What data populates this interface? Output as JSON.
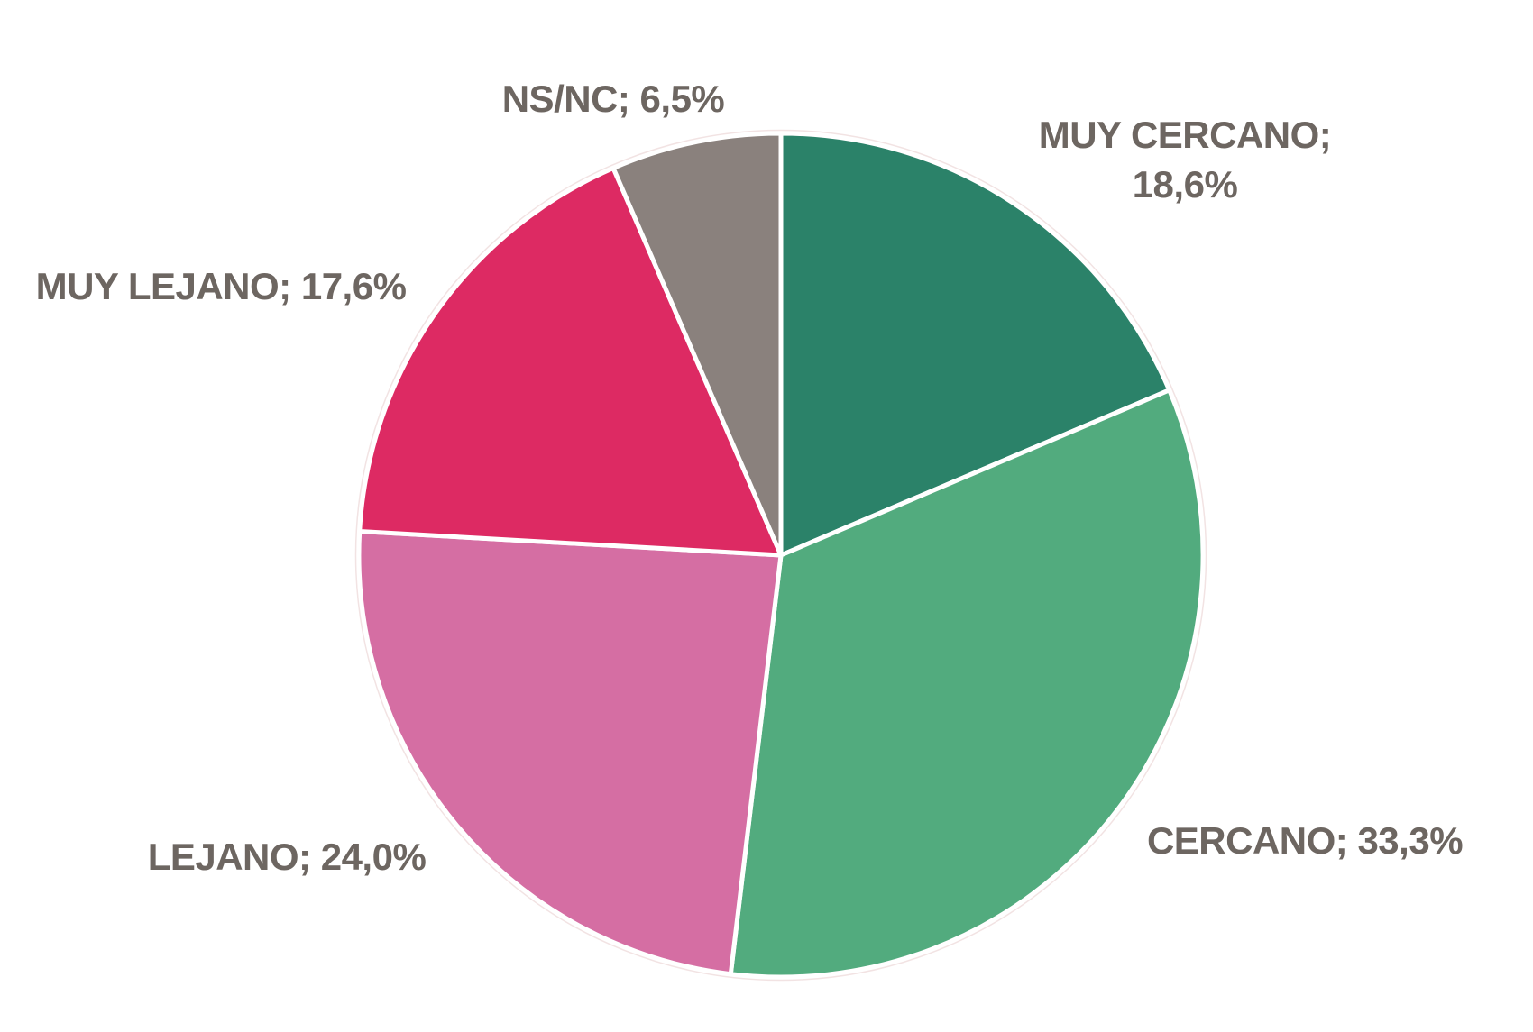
{
  "chart_data": {
    "type": "pie",
    "categories": [
      "MUY CERCANO",
      "CERCANO",
      "LEJANO",
      "MUY LEJANO",
      "NS/NC"
    ],
    "values": [
      18.6,
      33.3,
      24.0,
      17.6,
      6.5
    ],
    "value_labels": [
      "18,6%",
      "33,3%",
      "24,0%",
      "17,6%",
      "6,5%"
    ],
    "slice_labels": [
      "MUY CERCANO; 18,6%",
      "CERCANO; 33,3%",
      "LEJANO; 24,0%",
      "MUY LEJANO; 17,6%",
      "NS/NC; 6,5%"
    ],
    "colors": [
      "#2B8269",
      "#52AB7E",
      "#D56EA3",
      "#DD2A63",
      "#8A817D"
    ],
    "separator_color": "#FFFFFF",
    "outline_color": "#F2E3E3",
    "label_color": "#6D6661",
    "start_angle_deg": 0,
    "direction": "clockwise",
    "legend_position": "none",
    "title": ""
  },
  "labels": {
    "ns_nc": "NS/NC; 6,5%",
    "muy_cercano_line1": "MUY CERCANO;",
    "muy_cercano_line2": "18,6%",
    "muy_lejano": "MUY LEJANO; 17,6%",
    "lejano": "LEJANO; 24,0%",
    "cercano": "CERCANO; 33,3%"
  }
}
